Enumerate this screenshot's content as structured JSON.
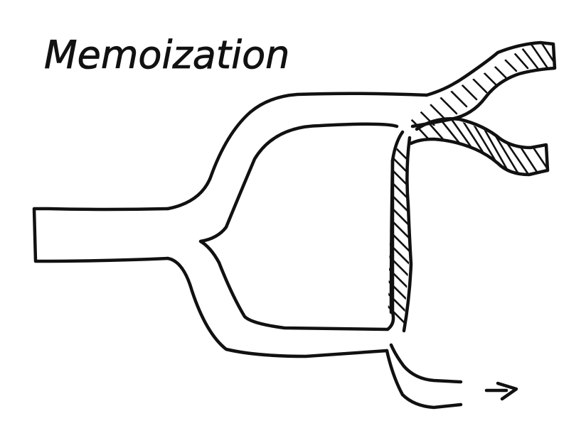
{
  "diagram": {
    "title": "Memoization",
    "line_color": "#111111",
    "background_color": "#ffffff",
    "icons": {
      "output_arrow": "right-arrow-icon"
    }
  }
}
